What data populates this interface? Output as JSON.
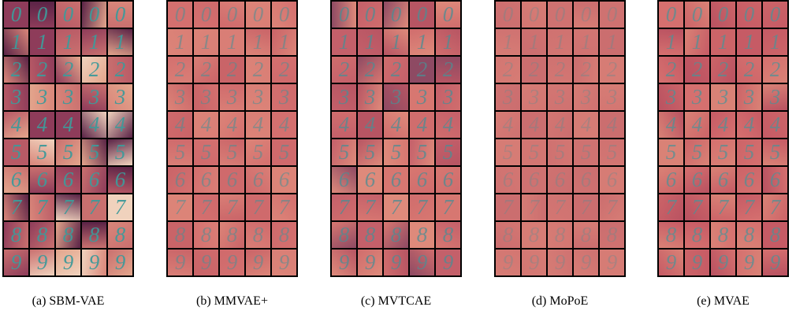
{
  "digits": [
    "0",
    "1",
    "2",
    "3",
    "4",
    "5",
    "6",
    "7",
    "8",
    "9"
  ],
  "panels": [
    {
      "caption": "(a) SBM-VAE",
      "tile_colors": [
        "#c9706f",
        "#5a2346",
        "#e3a58c",
        "#8e3c5a",
        "#d9867a",
        "#f0d2bd",
        "#b85a66"
      ],
      "digit_color": "#3f9a9a",
      "digit_opacity": 0.95
    },
    {
      "caption": "(b) MMVAE+",
      "tile_colors": [
        "#d4706f",
        "#cf6a6c",
        "#d97e76",
        "#c96468",
        "#dc8478"
      ],
      "digit_color": "#4c8f95",
      "digit_opacity": 0.55
    },
    {
      "caption": "(c) MVTCAE",
      "tile_colors": [
        "#d06d6d",
        "#c4606a",
        "#de8a7b",
        "#b75563",
        "#d77771",
        "#8e4a63"
      ],
      "digit_color": "#4d8d94",
      "digit_opacity": 0.75
    },
    {
      "caption": "(d) MoPoE",
      "tile_colors": [
        "#cf7271",
        "#d37672",
        "#cb6e6f",
        "#d67c75"
      ],
      "digit_color": "#5d8d92",
      "digit_opacity": 0.35
    },
    {
      "caption": "(e) MVAE",
      "tile_colors": [
        "#cc6468",
        "#c65b65",
        "#d5706f",
        "#d98276",
        "#b95261"
      ],
      "digit_color": "#4b9398",
      "digit_opacity": 0.7
    }
  ]
}
